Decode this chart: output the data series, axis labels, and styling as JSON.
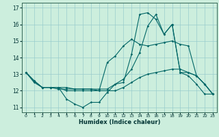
{
  "title": "",
  "xlabel": "Humidex (Indice chaleur)",
  "bg_color": "#cceedd",
  "line_color": "#006666",
  "grid_color": "#99cccc",
  "xlim": [
    -0.5,
    23.5
  ],
  "ylim": [
    10.7,
    17.3
  ],
  "yticks": [
    11,
    12,
    13,
    14,
    15,
    16,
    17
  ],
  "xticks": [
    0,
    1,
    2,
    3,
    4,
    5,
    6,
    7,
    8,
    9,
    10,
    11,
    12,
    13,
    14,
    15,
    16,
    17,
    18,
    19,
    20,
    21,
    22,
    23
  ],
  "series": [
    [
      13.1,
      12.6,
      12.2,
      12.2,
      12.2,
      11.5,
      11.2,
      11.0,
      11.3,
      11.3,
      11.9,
      12.4,
      12.5,
      14.2,
      16.6,
      16.7,
      16.3,
      15.4,
      16.0,
      13.1,
      12.9,
      12.4,
      11.8,
      11.8
    ],
    [
      13.1,
      12.6,
      12.2,
      12.2,
      12.2,
      12.0,
      12.0,
      12.0,
      12.0,
      12.0,
      12.0,
      12.0,
      12.2,
      12.5,
      12.8,
      13.0,
      13.1,
      13.2,
      13.3,
      13.3,
      13.1,
      12.9,
      12.4,
      11.8
    ],
    [
      13.1,
      12.5,
      12.2,
      12.2,
      12.1,
      12.1,
      12.1,
      12.1,
      12.1,
      12.1,
      12.1,
      12.4,
      12.7,
      13.3,
      14.3,
      15.9,
      16.6,
      15.4,
      16.0,
      13.1,
      13.1,
      12.9,
      12.4,
      11.8
    ],
    [
      13.1,
      12.6,
      12.2,
      12.2,
      12.2,
      12.2,
      12.1,
      12.1,
      12.1,
      12.0,
      13.7,
      14.1,
      14.7,
      15.1,
      14.8,
      14.7,
      14.8,
      14.9,
      15.0,
      14.8,
      14.7,
      12.9,
      12.4,
      11.8
    ]
  ]
}
